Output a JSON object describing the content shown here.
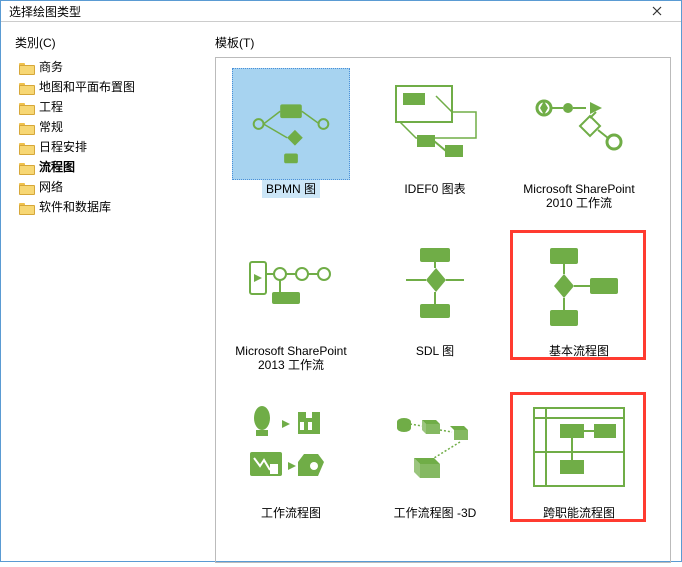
{
  "colors": {
    "accent": "#70ad47",
    "highlight": "#ff3b30",
    "select_bg": "#a7d3f0",
    "border": "#5a9bd3"
  },
  "window": {
    "title": "选择绘图类型"
  },
  "labels": {
    "category": "类別(C)",
    "template": "模板(T)"
  },
  "categories": [
    {
      "label": "商务",
      "selected": false
    },
    {
      "label": "地图和平面布置图",
      "selected": false
    },
    {
      "label": "工程",
      "selected": false
    },
    {
      "label": "常规",
      "selected": false
    },
    {
      "label": "日程安排",
      "selected": false
    },
    {
      "label": "流程图",
      "selected": true
    },
    {
      "label": "网络",
      "selected": false
    },
    {
      "label": "软件和数据库",
      "selected": false
    }
  ],
  "templates": [
    {
      "label": "BPMN 图",
      "selected": true,
      "highlighted": false,
      "icon": "bpmn"
    },
    {
      "label": "IDEF0 图表",
      "selected": false,
      "highlighted": false,
      "icon": "idef0"
    },
    {
      "label": "Microsoft SharePoint 2010 工作流",
      "selected": false,
      "highlighted": false,
      "icon": "sp2010"
    },
    {
      "label": "Microsoft SharePoint 2013 工作流",
      "selected": false,
      "highlighted": false,
      "icon": "sp2013"
    },
    {
      "label": "SDL 图",
      "selected": false,
      "highlighted": false,
      "icon": "sdl"
    },
    {
      "label": "基本流程图",
      "selected": false,
      "highlighted": true,
      "icon": "basic"
    },
    {
      "label": "工作流程图",
      "selected": false,
      "highlighted": false,
      "icon": "workflow"
    },
    {
      "label": "工作流程图 -3D",
      "selected": false,
      "highlighted": false,
      "icon": "workflow3d"
    },
    {
      "label": "跨职能流程图",
      "selected": false,
      "highlighted": true,
      "icon": "crossfunc"
    }
  ]
}
